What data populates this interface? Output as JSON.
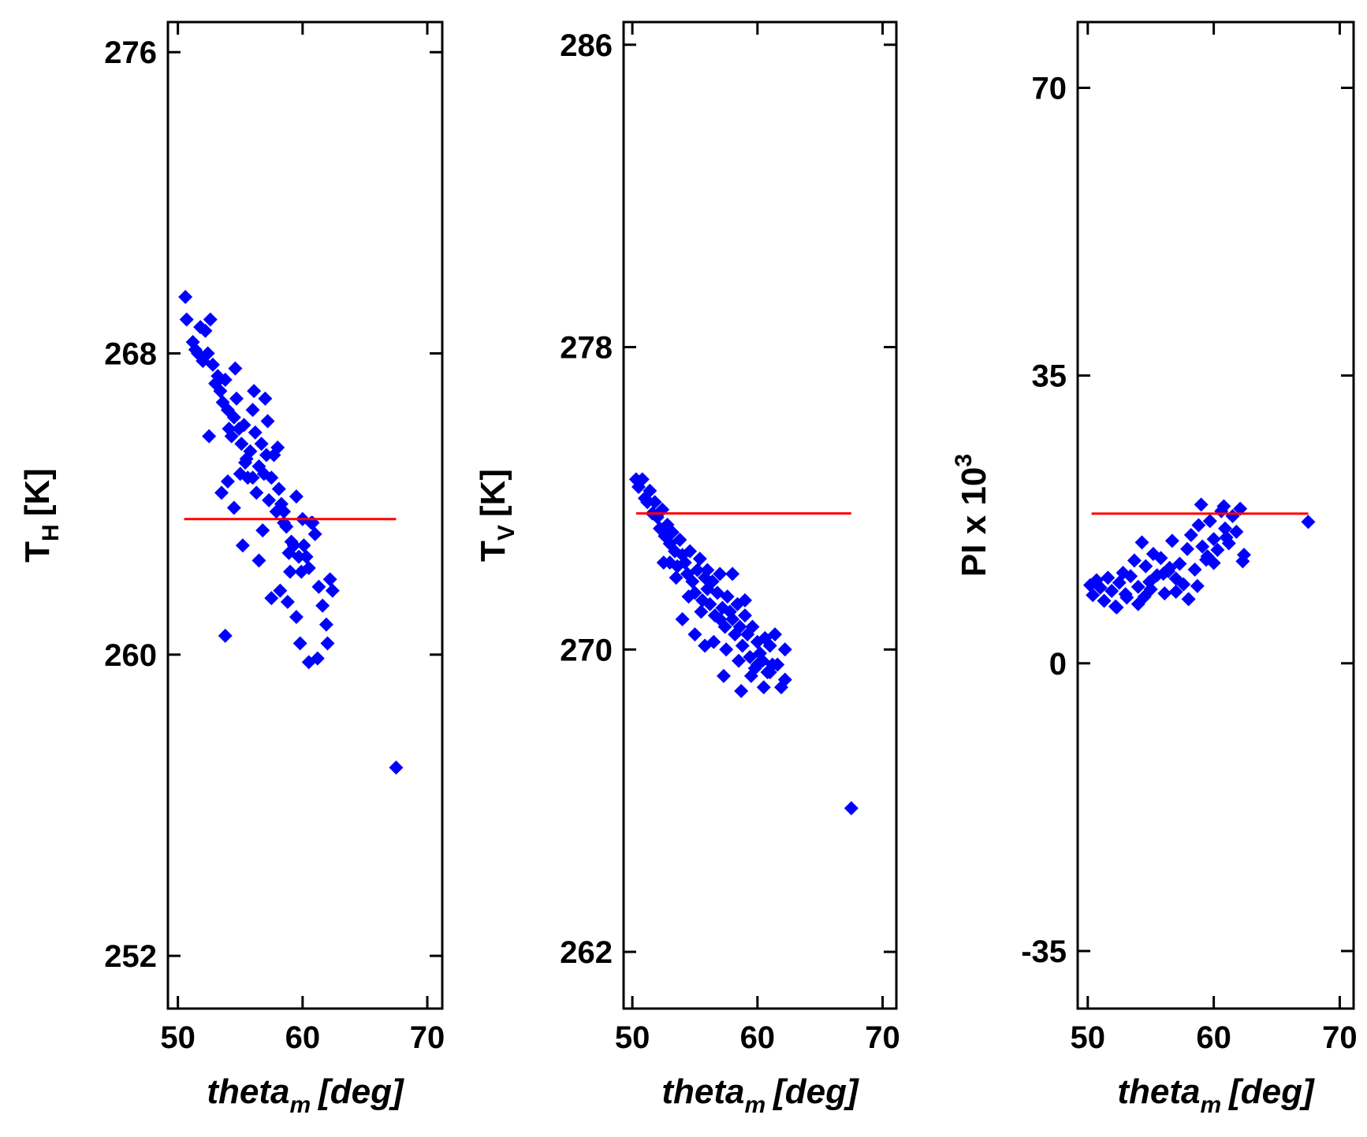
{
  "colors": {
    "points": "#0000ff",
    "reference_line": "#ff0000",
    "axes": "#000000"
  },
  "chart_data": [
    {
      "type": "scatter",
      "xlabel": "theta",
      "xlabel_sub": "m",
      "xlabel_unit": "[deg]",
      "ylabel": "T",
      "ylabel_sub": "H",
      "ylabel_unit": "[K]",
      "xlim": [
        49.2,
        71.2
      ],
      "ylim": [
        250.6,
        276.8
      ],
      "xticks": [
        50,
        60,
        70
      ],
      "yticks": [
        252,
        260,
        268,
        276
      ],
      "reference_line": {
        "x": [
          50.5,
          67.5
        ],
        "y": [
          263.6,
          263.6
        ]
      },
      "series": [
        {
          "marker": "diamond",
          "x": [
            50.6,
            50.7,
            51.2,
            51.4,
            51.6,
            51.8,
            52.0,
            52.2,
            52.4,
            52.6,
            52.8,
            53.0,
            53.2,
            53.4,
            53.6,
            53.8,
            54.0,
            54.1,
            54.3,
            54.5,
            54.7,
            54.9,
            55.1,
            55.3,
            55.4,
            55.6,
            55.8,
            56.0,
            56.2,
            56.3,
            56.5,
            56.7,
            56.9,
            57.1,
            57.3,
            57.5,
            57.7,
            57.9,
            58.1,
            58.3,
            58.5,
            58.7,
            58.9,
            59.1,
            59.3,
            59.5,
            59.7,
            59.9,
            60.1,
            60.3,
            60.5,
            60.7,
            61.0,
            61.3,
            61.6,
            61.9,
            62.2,
            62.4,
            52.5,
            53.5,
            54.5,
            55.5,
            56.5,
            57.5,
            58.5,
            59.5,
            60.5,
            53.8,
            55.2,
            56.8,
            58.2,
            59.8,
            61.2,
            62.0,
            54.0,
            55.0,
            56.0,
            57.0,
            58.0,
            59.0,
            60.0,
            57.2,
            54.6,
            56.1,
            58.8,
            60.8,
            67.5
          ],
          "y": [
            269.5,
            268.9,
            268.3,
            268.1,
            268.0,
            268.7,
            267.8,
            268.6,
            268.0,
            268.9,
            267.7,
            267.2,
            267.4,
            267.0,
            266.7,
            267.3,
            266.5,
            266.0,
            265.8,
            266.3,
            266.8,
            266.0,
            265.6,
            266.1,
            265.1,
            264.7,
            265.4,
            266.5,
            265.9,
            264.3,
            265.0,
            265.6,
            264.8,
            265.3,
            264.1,
            264.7,
            265.3,
            263.8,
            264.4,
            264.0,
            263.5,
            263.4,
            262.7,
            263.0,
            262.9,
            264.2,
            262.6,
            262.2,
            262.9,
            262.6,
            262.3,
            263.5,
            263.2,
            261.8,
            261.3,
            260.8,
            262.0,
            261.7,
            265.8,
            264.3,
            263.9,
            265.2,
            262.5,
            261.5,
            263.8,
            261.0,
            259.8,
            260.5,
            262.9,
            263.3,
            261.7,
            260.3,
            259.9,
            260.3,
            264.6,
            264.8,
            264.7,
            266.8,
            265.5,
            262.2,
            263.6,
            266.2,
            267.6,
            267.0,
            261.4,
            263.5,
            257.0
          ]
        }
      ]
    },
    {
      "type": "scatter",
      "xlabel": "theta",
      "xlabel_sub": "m",
      "xlabel_unit": "[deg]",
      "ylabel": "T",
      "ylabel_sub": "V",
      "ylabel_unit": "[K]",
      "xlim": [
        49.3,
        71.1
      ],
      "ylim": [
        260.5,
        286.6
      ],
      "xticks": [
        50,
        60,
        70
      ],
      "yticks": [
        262,
        270,
        278,
        286
      ],
      "reference_line": {
        "x": [
          50.3,
          67.5
        ],
        "y": [
          273.6,
          273.6
        ]
      },
      "series": [
        {
          "marker": "diamond",
          "x": [
            50.3,
            50.5,
            50.8,
            51.0,
            51.2,
            51.4,
            51.6,
            51.8,
            52.0,
            52.2,
            52.4,
            52.6,
            52.8,
            53.0,
            53.2,
            53.4,
            53.6,
            53.8,
            54.0,
            54.2,
            54.4,
            54.6,
            54.8,
            55.0,
            55.2,
            55.4,
            55.6,
            55.8,
            56.0,
            56.2,
            56.4,
            56.6,
            56.8,
            57.0,
            57.2,
            57.4,
            57.6,
            57.8,
            58.0,
            58.2,
            58.4,
            58.6,
            58.8,
            59.0,
            59.2,
            59.4,
            59.6,
            59.8,
            60.0,
            60.2,
            60.4,
            60.6,
            60.8,
            61.0,
            61.2,
            61.4,
            61.6,
            61.9,
            62.2,
            52.5,
            53.5,
            54.5,
            55.5,
            56.5,
            57.5,
            58.5,
            59.5,
            60.5,
            53.0,
            54.0,
            55.0,
            56.0,
            57.0,
            58.0,
            59.0,
            60.0,
            61.0,
            55.8,
            57.3,
            58.7,
            62.2,
            67.5
          ],
          "y": [
            274.5,
            274.3,
            274.5,
            274.0,
            273.9,
            274.2,
            273.6,
            273.9,
            273.5,
            273.2,
            273.7,
            273.0,
            273.3,
            272.8,
            273.1,
            272.6,
            272.2,
            272.9,
            272.5,
            272.3,
            272.0,
            272.6,
            271.8,
            271.5,
            272.1,
            272.4,
            271.3,
            271.9,
            271.6,
            271.2,
            271.8,
            270.9,
            271.5,
            272.0,
            271.1,
            270.6,
            271.4,
            271.0,
            270.8,
            270.4,
            271.2,
            270.6,
            270.1,
            270.9,
            270.4,
            269.8,
            270.6,
            269.5,
            270.2,
            269.9,
            269.7,
            270.3,
            269.4,
            270.1,
            269.6,
            270.4,
            269.6,
            269.0,
            270.0,
            272.3,
            271.9,
            271.4,
            271.0,
            270.2,
            270.0,
            269.7,
            269.3,
            269.0,
            272.3,
            270.8,
            270.4,
            272.1,
            270.8,
            272.0,
            271.3,
            269.6,
            269.4,
            270.1,
            269.3,
            268.9,
            269.2,
            265.8
          ]
        }
      ]
    },
    {
      "type": "scatter",
      "xlabel": "theta",
      "xlabel_sub": "m",
      "xlabel_unit": "[deg]",
      "ylabel": "PI x 10",
      "ylabel_sup": "3",
      "xlim": [
        49.2,
        71.1
      ],
      "ylim": [
        -42,
        78
      ],
      "xticks": [
        50,
        60,
        70
      ],
      "yticks": [
        -35,
        0,
        35,
        70
      ],
      "reference_line": {
        "x": [
          50.3,
          67.5
        ],
        "y": [
          18.2,
          18.2
        ]
      },
      "series": [
        {
          "marker": "diamond",
          "x": [
            50.2,
            50.4,
            50.7,
            51.0,
            51.3,
            51.6,
            51.9,
            52.2,
            52.5,
            52.8,
            53.1,
            53.4,
            53.7,
            54.0,
            54.3,
            54.6,
            54.9,
            55.2,
            55.5,
            55.8,
            56.1,
            56.4,
            56.7,
            57.0,
            57.3,
            57.6,
            57.9,
            58.2,
            58.5,
            58.8,
            59.1,
            59.4,
            59.7,
            60.0,
            60.3,
            60.6,
            60.9,
            61.2,
            61.5,
            61.8,
            62.1,
            62.4,
            53.0,
            54.0,
            55.0,
            56.0,
            57.0,
            58.0,
            59.0,
            60.0,
            61.0,
            52.3,
            54.5,
            56.5,
            58.7,
            59.5,
            60.8,
            62.3,
            67.5
          ],
          "y": [
            9.5,
            8.3,
            10.1,
            9.2,
            7.6,
            10.4,
            8.8,
            6.9,
            9.8,
            11.0,
            8.0,
            10.6,
            12.5,
            9.3,
            14.7,
            11.8,
            9.9,
            13.3,
            10.7,
            12.8,
            8.5,
            11.2,
            14.9,
            10.3,
            12.1,
            9.6,
            13.9,
            15.6,
            11.4,
            16.8,
            14.2,
            12.6,
            17.3,
            15.1,
            13.8,
            18.5,
            16.4,
            14.6,
            17.9,
            16.0,
            18.8,
            13.2,
            8.4,
            7.2,
            9.0,
            10.9,
            8.7,
            7.8,
            19.3,
            12.2,
            15.3,
            6.8,
            8.1,
            11.6,
            9.4,
            13.0,
            19.1,
            12.4,
            17.2
          ]
        }
      ]
    }
  ]
}
